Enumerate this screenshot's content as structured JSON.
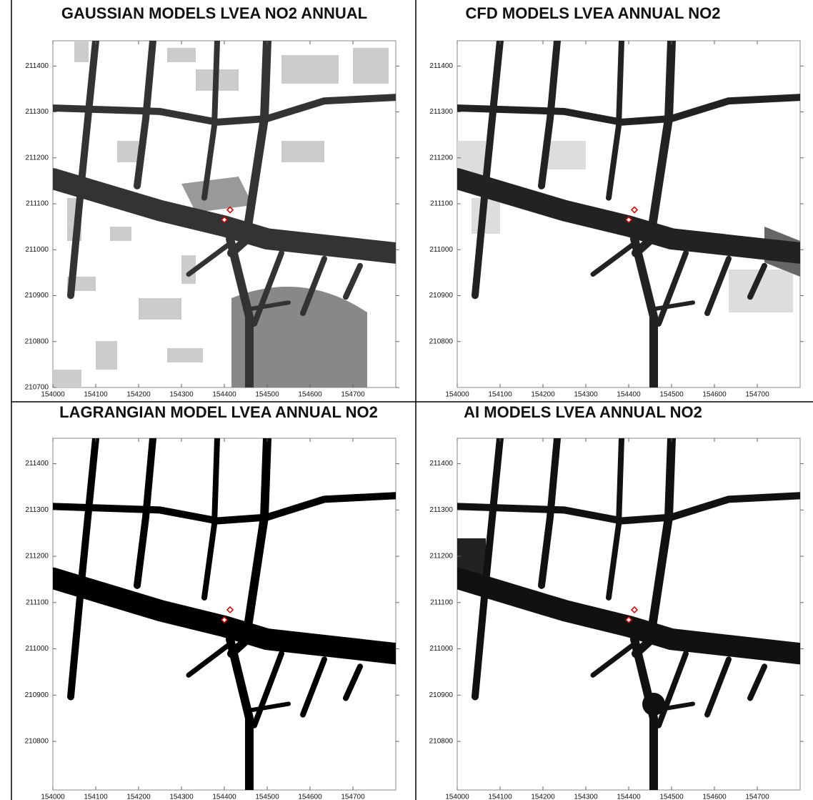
{
  "chart_data": [
    {
      "type": "map",
      "title": "GAUSSIAN MODELS LVEA NO2 ANNUAL",
      "xlim": [
        154000,
        154800
      ],
      "ylim": [
        210700,
        211455
      ],
      "xticks": [
        154000,
        154100,
        154200,
        154300,
        154400,
        154500,
        154600,
        154700
      ],
      "yticks": [
        210700,
        210800,
        210900,
        211000,
        211100,
        211200,
        211300,
        211400
      ]
    },
    {
      "type": "map",
      "title": "CFD MODELS LVEA ANNUAL NO2",
      "xlim": [
        154000,
        154800
      ],
      "ylim": [
        210700,
        211455
      ],
      "xticks": [
        154000,
        154100,
        154200,
        154300,
        154400,
        154500,
        154600,
        154700
      ],
      "yticks": [
        210800,
        210900,
        211000,
        211100,
        211200,
        211300,
        211400
      ]
    },
    {
      "type": "map",
      "title": "LAGRANGIAN MODEL LVEA ANNUAL NO2",
      "xlim": [
        154000,
        154800
      ],
      "ylim": [
        210695,
        211455
      ],
      "xticks": [
        154000,
        154100,
        154200,
        154300,
        154400,
        154500,
        154600,
        154700
      ],
      "yticks": [
        210800,
        210900,
        211000,
        211100,
        211200,
        211300,
        211400
      ]
    },
    {
      "type": "map",
      "title": "AI MODELS LVEA ANNUAL NO2",
      "xlim": [
        154000,
        154800
      ],
      "ylim": [
        210695,
        211455
      ],
      "xticks": [
        154000,
        154100,
        154200,
        154300,
        154400,
        154500,
        154600,
        154700
      ],
      "yticks": [
        210800,
        210900,
        211000,
        211100,
        211200,
        211300,
        211400
      ]
    }
  ]
}
